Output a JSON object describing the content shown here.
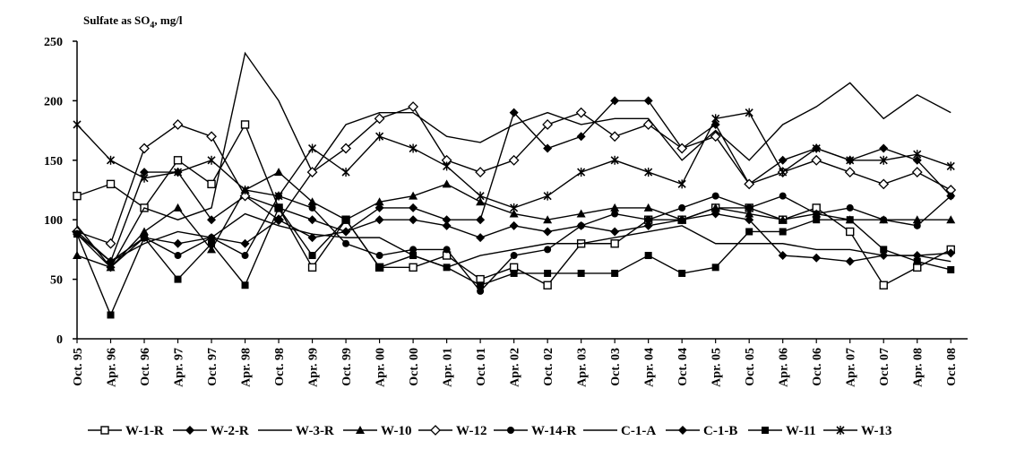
{
  "chart_data": {
    "type": "line",
    "title": "",
    "ylabel_prefix": "Sulfate as SO",
    "ylabel_sub": "4",
    "ylabel_suffix": ", mg/l",
    "xlabel": "",
    "ylim": [
      0,
      250
    ],
    "yticks": [
      "0",
      "50",
      "100",
      "150",
      "200",
      "250"
    ],
    "grid": false,
    "legend_position": "bottom",
    "x": [
      "Oct. 95",
      "Apr. 96",
      "Oct. 96",
      "Apr. 97",
      "Oct. 97",
      "Apr. 98",
      "Oct. 98",
      "Apr. 99",
      "Oct. 99",
      "Apr. 00",
      "Oct. 00",
      "Apr. 01",
      "Oct. 01",
      "Apr. 02",
      "Oct. 02",
      "Apr. 03",
      "Oct. 03",
      "Apr. 04",
      "Oct. 04",
      "Apr. 05",
      "Oct. 05",
      "Apr. 06",
      "Oct. 06",
      "Apr. 07",
      "Oct. 07",
      "Apr. 08",
      "Oct. 08"
    ],
    "series": [
      {
        "name": "W-1-R",
        "marker": "square-open",
        "values": [
          120,
          130,
          110,
          150,
          130,
          180,
          110,
          60,
          100,
          60,
          60,
          70,
          50,
          60,
          45,
          80,
          80,
          100,
          100,
          110,
          110,
          100,
          110,
          90,
          45,
          60,
          75
        ]
      },
      {
        "name": "W-2-R",
        "marker": "diamond-filled",
        "values": [
          90,
          65,
          140,
          140,
          100,
          120,
          110,
          100,
          90,
          110,
          110,
          100,
          100,
          190,
          160,
          170,
          200,
          200,
          160,
          180,
          130,
          150,
          160,
          150,
          160,
          150,
          120
        ]
      },
      {
        "name": "W-3-R",
        "marker": "none",
        "values": [
          95,
          60,
          110,
          100,
          110,
          240,
          200,
          140,
          180,
          190,
          190,
          170,
          165,
          180,
          190,
          180,
          185,
          185,
          150,
          175,
          150,
          180,
          195,
          215,
          185,
          205,
          190
        ]
      },
      {
        "name": "W-10",
        "marker": "triangle-filled",
        "values": [
          70,
          60,
          90,
          110,
          75,
          125,
          140,
          115,
          100,
          115,
          120,
          130,
          115,
          105,
          100,
          105,
          110,
          110,
          100,
          110,
          105,
          100,
          105,
          100,
          100,
          100,
          100
        ]
      },
      {
        "name": "W-12",
        "marker": "diamond-open",
        "values": [
          90,
          80,
          160,
          180,
          170,
          120,
          100,
          140,
          160,
          185,
          195,
          150,
          140,
          150,
          180,
          190,
          170,
          180,
          160,
          170,
          130,
          140,
          150,
          140,
          130,
          140,
          125
        ]
      },
      {
        "name": "W-14-R",
        "marker": "circle-filled",
        "values": [
          88,
          65,
          85,
          70,
          85,
          70,
          120,
          110,
          80,
          70,
          75,
          75,
          40,
          70,
          75,
          95,
          105,
          100,
          110,
          120,
          110,
          120,
          105,
          110,
          100,
          95,
          120
        ]
      },
      {
        "name": "C-1-A",
        "marker": "none",
        "values": [
          88,
          65,
          80,
          90,
          85,
          105,
          95,
          88,
          85,
          85,
          70,
          60,
          70,
          75,
          80,
          80,
          85,
          90,
          95,
          80,
          80,
          80,
          75,
          75,
          70,
          70,
          65
        ]
      },
      {
        "name": "C-1-B",
        "marker": "diamond-filled",
        "values": [
          88,
          60,
          85,
          80,
          85,
          80,
          100,
          85,
          90,
          100,
          100,
          95,
          85,
          95,
          90,
          95,
          90,
          95,
          100,
          105,
          100,
          70,
          68,
          65,
          70,
          70,
          72
        ]
      },
      {
        "name": "W-11",
        "marker": "square-filled",
        "values": [
          88,
          20,
          85,
          50,
          80,
          45,
          110,
          70,
          100,
          60,
          70,
          60,
          45,
          55,
          55,
          55,
          55,
          70,
          55,
          60,
          90,
          90,
          100,
          100,
          75,
          65,
          58
        ]
      },
      {
        "name": "W-13",
        "marker": "star",
        "values": [
          180,
          150,
          135,
          140,
          150,
          125,
          120,
          160,
          140,
          170,
          160,
          145,
          120,
          110,
          120,
          140,
          150,
          140,
          130,
          185,
          190,
          140,
          160,
          150,
          150,
          155,
          145
        ]
      }
    ]
  }
}
